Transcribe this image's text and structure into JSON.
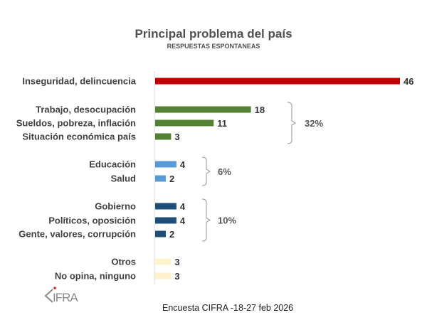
{
  "chart_data": {
    "type": "bar",
    "orientation": "horizontal",
    "title": "Principal problema del país",
    "subtitle": "RESPUESTAS ESPONTANEAS",
    "xlim": [
      0,
      46
    ],
    "categories": [
      "Inseguridad, delincuencia",
      "Trabajo, desocupación",
      "Sueldos, pobreza, inflación",
      "Situación económica país",
      "Educación",
      "Salud",
      "Gobierno",
      "Políticos, oposición",
      "Gente, valores, corrupción",
      "Otros",
      "No opina, ninguno"
    ],
    "values": [
      46,
      18,
      11,
      3,
      4,
      2,
      4,
      4,
      2,
      3,
      3
    ],
    "colors": [
      "#c00000",
      "#548235",
      "#548235",
      "#548235",
      "#5b9bd5",
      "#5b9bd5",
      "#1f4e79",
      "#1f4e79",
      "#1f4e79",
      "#fff2cc",
      "#fff2cc"
    ],
    "groups": [
      {
        "label": "32%",
        "from": 1,
        "to": 3
      },
      {
        "label": "6%",
        "from": 4,
        "to": 5
      },
      {
        "label": "10%",
        "from": 6,
        "to": 8
      }
    ]
  },
  "footer": "Encuesta CIFRA -18-27 feb 2026",
  "logo": "CIFRA"
}
